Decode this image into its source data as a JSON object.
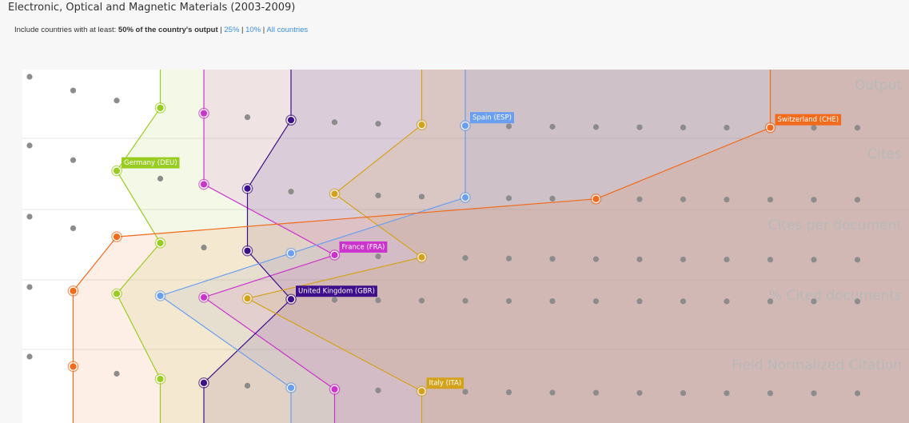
{
  "header": {
    "title": "Electronic, Optical and Magnetic Materials (2003-2009)",
    "filter": {
      "prefix": "Include countries with at least:",
      "options": [
        "50% of the country's output",
        "25%",
        "10%",
        "All countries"
      ]
    }
  },
  "metrics": [
    "Output",
    "Cites",
    "Cites per document",
    "% Cited documents",
    "Field Normalized Citation"
  ],
  "countries": [
    {
      "name": "Germany (DEU)",
      "color": "#99cc22",
      "ranks": [
        4,
        3,
        4,
        3,
        4
      ]
    },
    {
      "name": "France (FRA)",
      "color": "#cc33cc",
      "ranks": [
        5,
        5,
        8,
        5,
        8
      ]
    },
    {
      "name": "United Kingdom (GBR)",
      "color": "#3d0f8a",
      "ranks": [
        7,
        6,
        6,
        7,
        5
      ]
    },
    {
      "name": "Italy (ITA)",
      "color": "#d4a21a",
      "ranks": [
        10,
        8,
        10,
        6,
        10
      ]
    },
    {
      "name": "Spain (ESP)",
      "color": "#6a9ef0",
      "ranks": [
        11,
        11,
        7,
        4,
        7
      ]
    },
    {
      "name": "Switzerland (CHE)",
      "color": "#f26a1b",
      "ranks": [
        18,
        14,
        3,
        2,
        2
      ]
    }
  ]
}
